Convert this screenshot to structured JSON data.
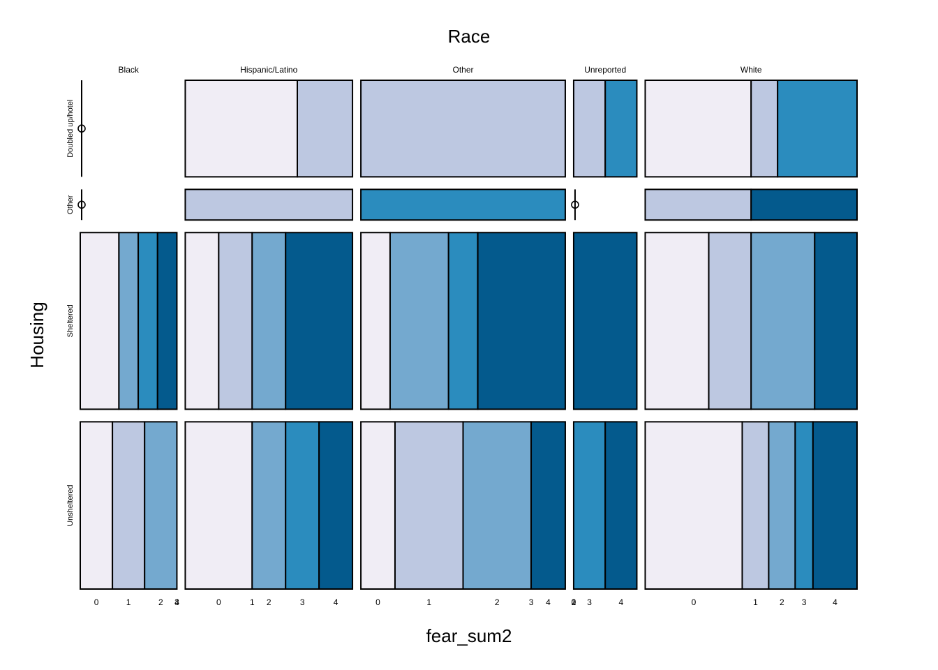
{
  "chart_data": {
    "type": "mosaic",
    "title": "Race",
    "xlabel": "fear_sum2",
    "ylabel": "Housing",
    "x_variable": "Race",
    "fill_variable": "fear_sum2",
    "row_variable": "Housing",
    "races": [
      "Black",
      "Hispanic/Latino",
      "Other",
      "Unreported",
      "White"
    ],
    "housing": [
      "Doubled up/hotel",
      "Other",
      "Sheltered",
      "Unsheltered"
    ],
    "fear_levels": [
      "0",
      "1",
      "2",
      "3",
      "4"
    ],
    "colors": [
      "#f0edf5",
      "#bdc8e1",
      "#74a9cf",
      "#2b8cbe",
      "#045a8d"
    ],
    "race_widths": [
      0.13,
      0.225,
      0.275,
      0.085,
      0.285
    ],
    "housing_heights": [
      0.205,
      0.065,
      0.375,
      0.355
    ],
    "rows": [
      {
        "housing": "Doubled up/hotel",
        "cells": [
          {
            "race": "Black",
            "fear": [
              0,
              0,
              0,
              0,
              0
            ]
          },
          {
            "race": "Hispanic/Latino",
            "fear": [
              0.67,
              0.33,
              0,
              0,
              0
            ]
          },
          {
            "race": "Other",
            "fear": [
              0,
              1,
              0,
              0,
              0
            ]
          },
          {
            "race": "Unreported",
            "fear": [
              0,
              0.5,
              0,
              0.5,
              0
            ]
          },
          {
            "race": "White",
            "fear": [
              0.5,
              0.125,
              0,
              0.375,
              0
            ]
          }
        ]
      },
      {
        "housing": "Other",
        "cells": [
          {
            "race": "Black",
            "fear": [
              0,
              0,
              0,
              0,
              0
            ]
          },
          {
            "race": "Hispanic/Latino",
            "fear": [
              0,
              1,
              0,
              0,
              0
            ]
          },
          {
            "race": "Other",
            "fear": [
              0,
              0,
              0,
              1,
              0
            ]
          },
          {
            "race": "Unreported",
            "fear": [
              0,
              0,
              0,
              0,
              0
            ]
          },
          {
            "race": "White",
            "fear": [
              0,
              0.5,
              0,
              0,
              0.5
            ]
          }
        ]
      },
      {
        "housing": "Sheltered",
        "cells": [
          {
            "race": "Black",
            "fear": [
              0.4,
              0,
              0.2,
              0.2,
              0.2
            ]
          },
          {
            "race": "Hispanic/Latino",
            "fear": [
              0.2,
              0.2,
              0.2,
              0,
              0.4
            ]
          },
          {
            "race": "Other",
            "fear": [
              0.143,
              0,
              0.286,
              0.143,
              0.428
            ]
          },
          {
            "race": "Unreported",
            "fear": [
              0,
              0,
              0,
              0,
              1
            ]
          },
          {
            "race": "White",
            "fear": [
              0.3,
              0.2,
              0.3,
              0,
              0.2
            ]
          }
        ]
      },
      {
        "housing": "Unsheltered",
        "cells": [
          {
            "race": "Black",
            "fear": [
              0.333,
              0.333,
              0.334,
              0,
              0
            ]
          },
          {
            "race": "Hispanic/Latino",
            "fear": [
              0.4,
              0,
              0.2,
              0.2,
              0.2
            ]
          },
          {
            "race": "Other",
            "fear": [
              0.167,
              0.333,
              0.333,
              0,
              0.167
            ]
          },
          {
            "race": "Unreported",
            "fear": [
              0,
              0,
              0,
              0.5,
              0.5
            ]
          },
          {
            "race": "White",
            "fear": [
              0.458,
              0.125,
              0.125,
              0.084,
              0.208
            ]
          }
        ]
      }
    ]
  }
}
